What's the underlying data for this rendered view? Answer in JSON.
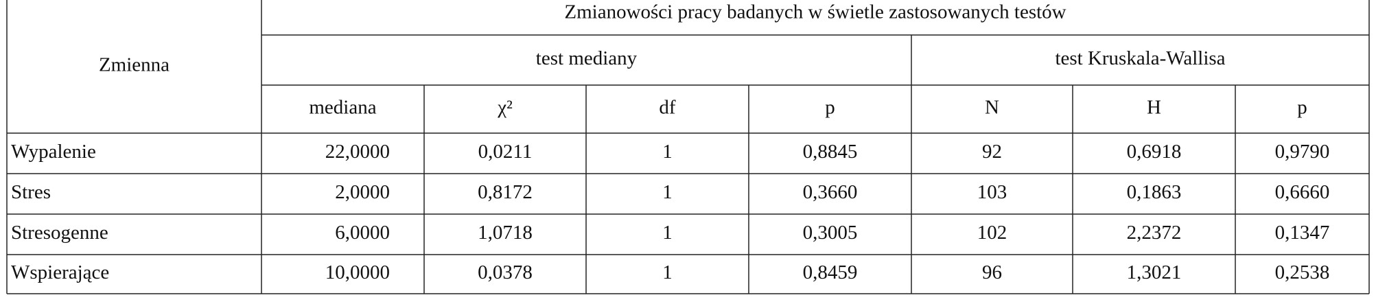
{
  "table": {
    "title": "Zmianowości pracy badanych w świetle zastosowanych testów",
    "row_header": "Zmienna",
    "groups": [
      "test mediany",
      "test Kruskala-Wallisa"
    ],
    "columns": [
      "mediana",
      "χ²",
      "df",
      "p",
      "N",
      "H",
      "p"
    ],
    "rows": [
      [
        "Wypalenie",
        "22,0000",
        "0,0211",
        "1",
        "0,8845",
        "92",
        "0,6918",
        "0,9790"
      ],
      [
        "Stres",
        "2,0000",
        "0,8172",
        "1",
        "0,3660",
        "103",
        "0,1863",
        "0,6660"
      ],
      [
        "Stresogenne",
        "6,0000",
        "1,0718",
        "1",
        "0,3005",
        "102",
        "2,2372",
        "0,1347"
      ],
      [
        "Wspierające",
        "10,0000",
        "0,0378",
        "1",
        "0,8459",
        "96",
        "1,3021",
        "0,2538"
      ]
    ]
  }
}
